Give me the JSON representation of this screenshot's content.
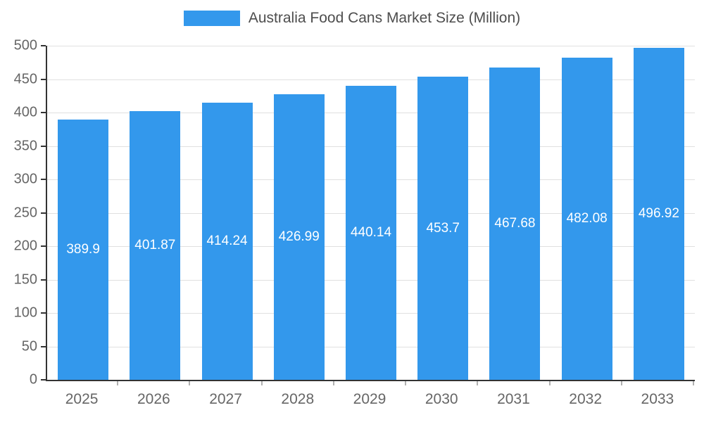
{
  "chart": {
    "title": "Australia Food Cans Market Size (Million)"
  },
  "chart_data": {
    "type": "bar",
    "title": "Australia Food Cans Market Size (Million)",
    "categories": [
      "2025",
      "2026",
      "2027",
      "2028",
      "2029",
      "2030",
      "2031",
      "2032",
      "2033"
    ],
    "values": [
      389.9,
      401.87,
      414.24,
      426.99,
      440.14,
      453.7,
      467.68,
      482.08,
      496.92
    ],
    "value_labels": [
      "389.9",
      "401.87",
      "414.24",
      "426.99",
      "440.14",
      "453.7",
      "467.68",
      "482.08",
      "496.92"
    ],
    "xlabel": "",
    "ylabel": "",
    "ylim": [
      0,
      500
    ],
    "ytick_step": 50,
    "grid": true,
    "legend_position": "top",
    "bar_color": "#3398ec",
    "value_label_color": "#ffffff",
    "axis_text_color": "#666666",
    "title_color": "#4d4d4d",
    "gridline_color": "#e0e0e0",
    "axis_line_color": "#333333"
  }
}
